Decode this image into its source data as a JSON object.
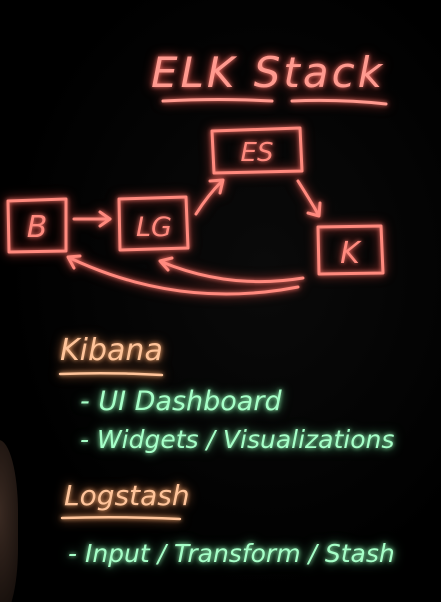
{
  "title": "ELK Stack",
  "nodes": {
    "b": "B",
    "lg": "LG",
    "es": "ES",
    "k": "K"
  },
  "notes": {
    "kibana_heading": "Kibana",
    "kibana_items": [
      "- UI Dashboard",
      "- Widgets / Visualizations"
    ],
    "logstash_heading": "Logstash",
    "logstash_items": [
      "- Input / Transform / Stash"
    ]
  },
  "colors": {
    "title": "#ff9a8f",
    "diagram": "#ff8a7e",
    "heading": "#ffc49a",
    "list": "#a6ffc8",
    "background": "#000000"
  }
}
